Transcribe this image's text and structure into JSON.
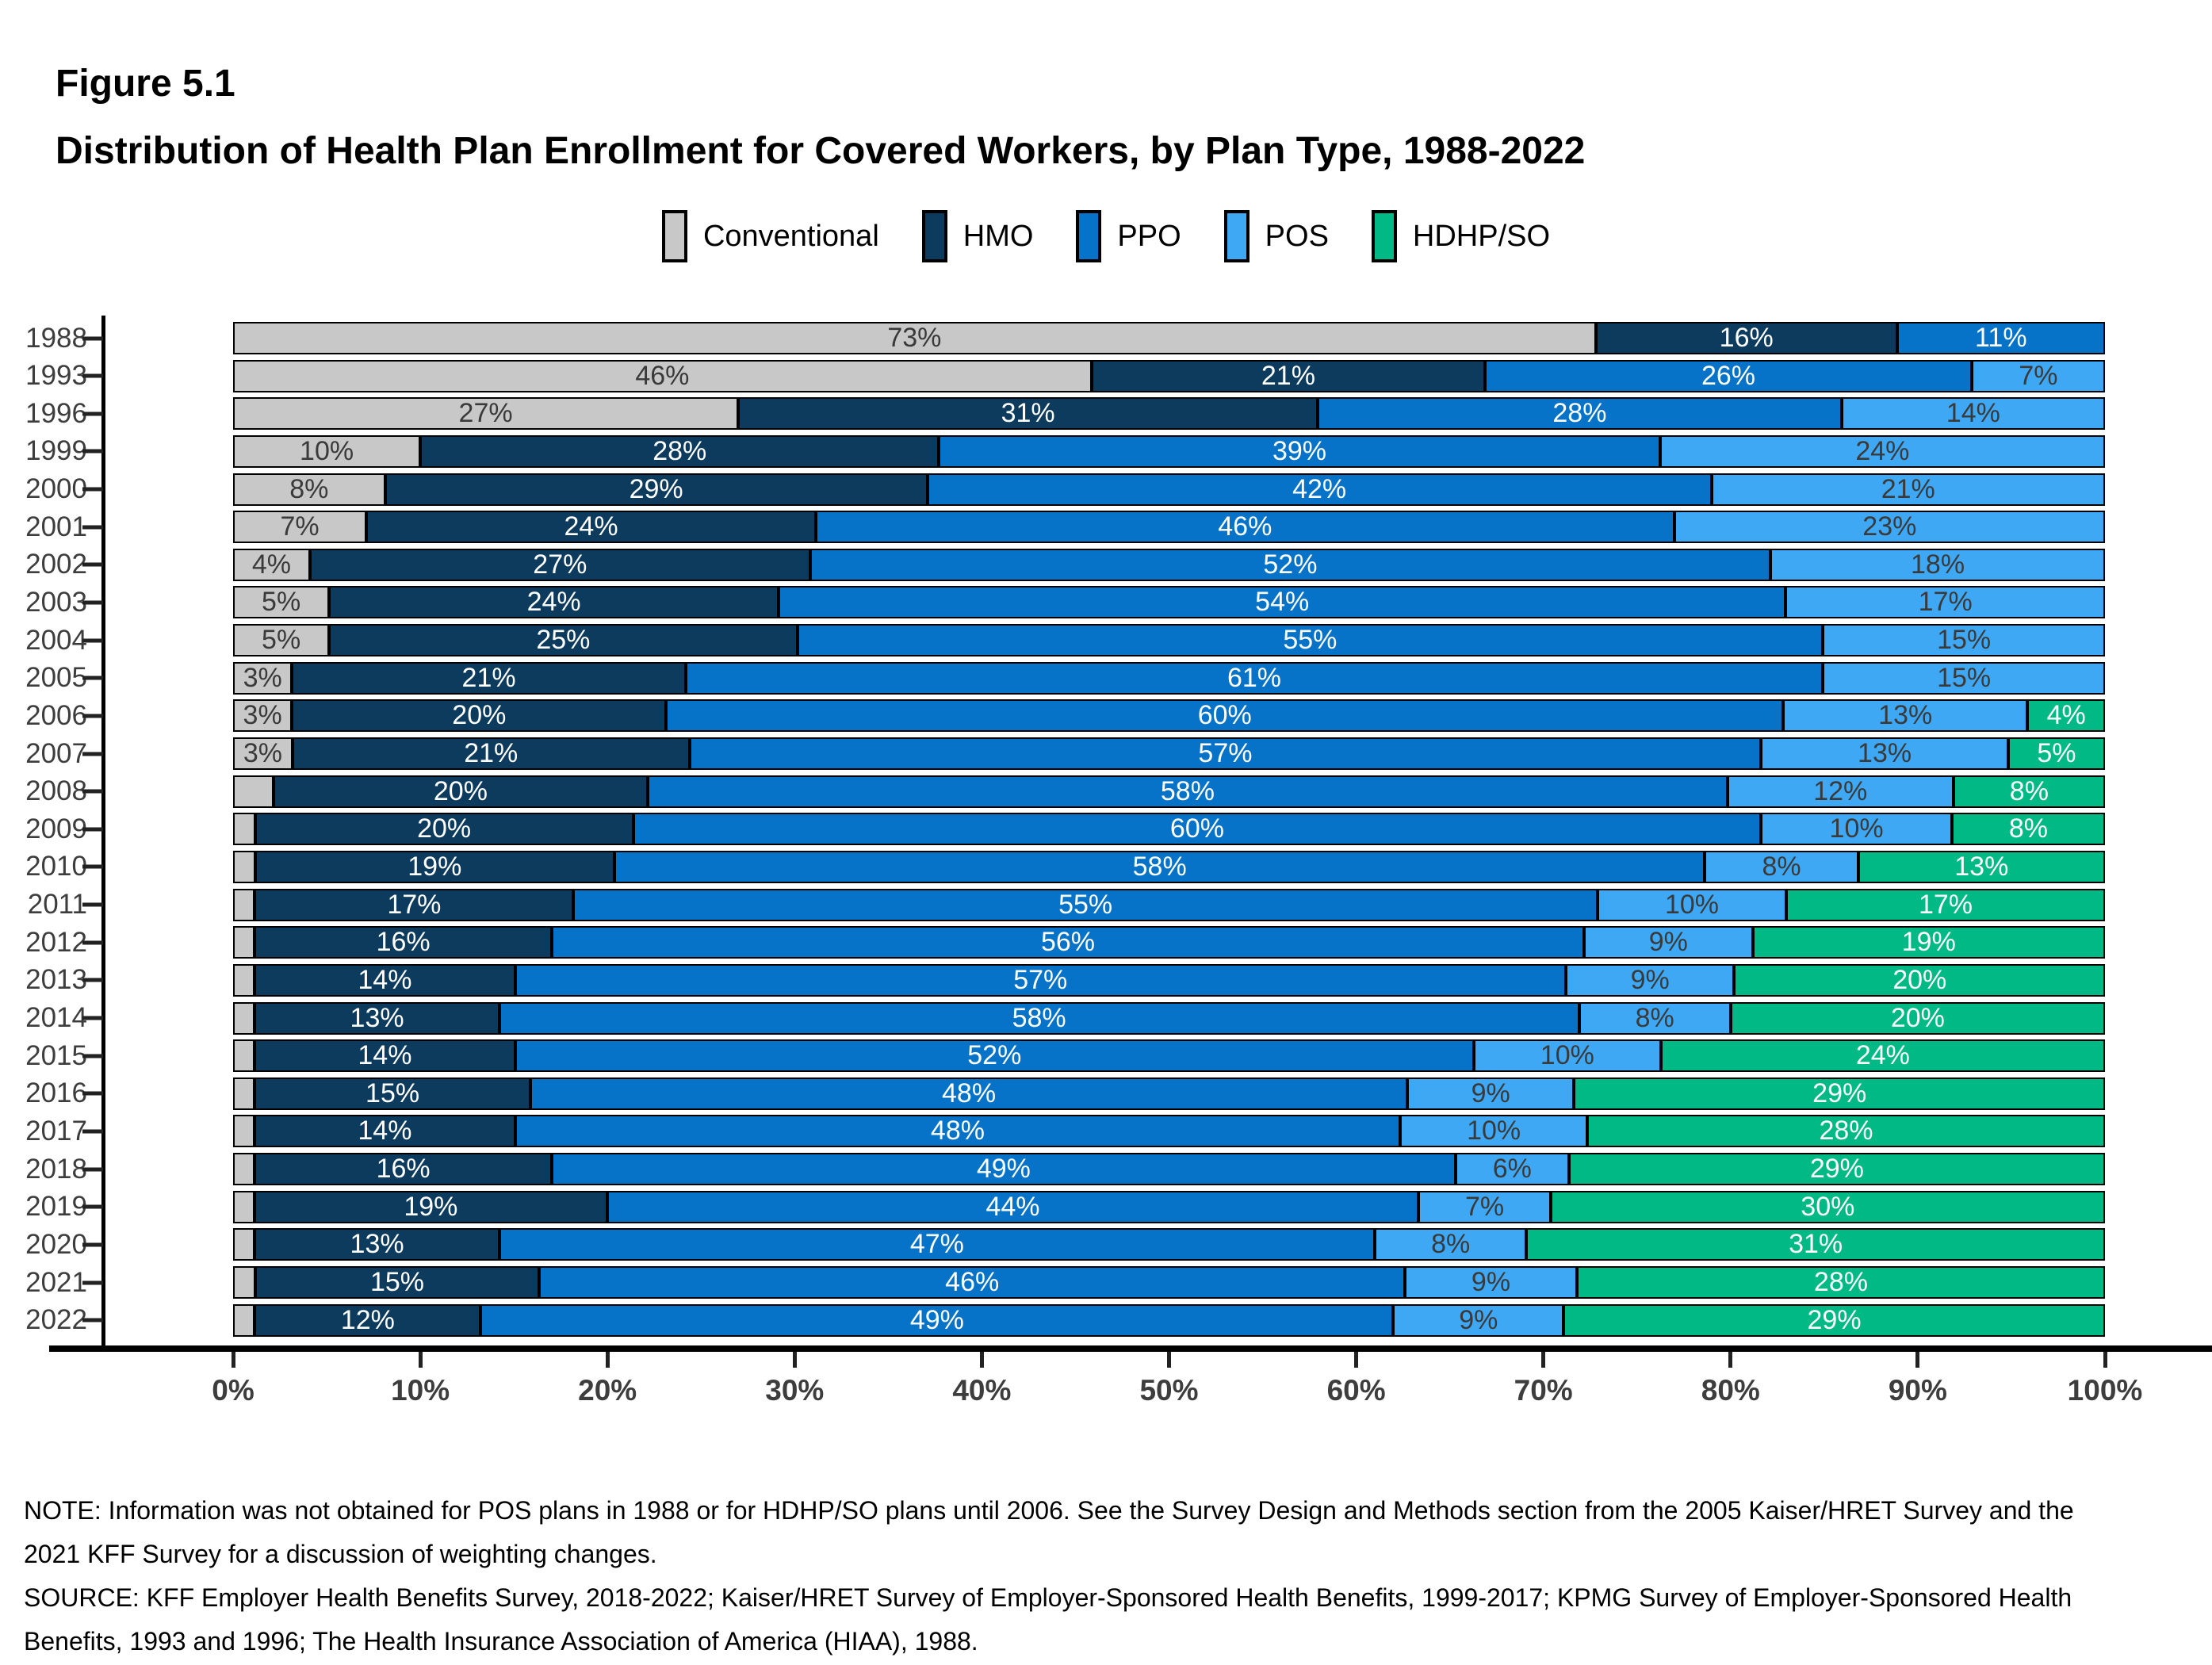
{
  "figure": {
    "label": "Figure 5.1",
    "title": "Distribution of Health Plan Enrollment for Covered Workers, by Plan Type, 1988-2022"
  },
  "notes": {
    "note": "NOTE: Information was not obtained for POS plans in 1988 or for HDHP/SO plans until 2006. See the Survey Design and Methods section from the 2005 Kaiser/HRET Survey and the 2021 KFF Survey for a discussion of weighting changes.",
    "source": "SOURCE: KFF Employer Health Benefits Survey, 2018-2022; Kaiser/HRET Survey of Employer-Sponsored Health Benefits, 1999-2017; KPMG Survey of Employer-Sponsored Health Benefits, 1993 and 1996; The Health Insurance Association of America (HIAA), 1988."
  },
  "chart_data": {
    "type": "bar",
    "stacked": true,
    "horizontal": true,
    "grid": false,
    "legend_position": "top-center",
    "axis_color": "#3d3d3d",
    "x_axis": {
      "min": 0,
      "max": 100,
      "ticks": [
        "0%",
        "10%",
        "20%",
        "30%",
        "40%",
        "50%",
        "60%",
        "70%",
        "80%",
        "90%",
        "100%"
      ]
    },
    "categories": [
      "1988",
      "1993",
      "1996",
      "1999",
      "2000",
      "2001",
      "2002",
      "2003",
      "2004",
      "2005",
      "2006",
      "2007",
      "2008",
      "2009",
      "2010",
      "2011",
      "2012",
      "2013",
      "2014",
      "2015",
      "2016",
      "2017",
      "2018",
      "2019",
      "2020",
      "2021",
      "2022"
    ],
    "series": [
      {
        "name": "Conventional",
        "color": "#c8c8c8",
        "label_color": "#3a3a3a",
        "values": [
          73,
          46,
          27,
          10,
          8,
          7,
          4,
          5,
          5,
          3,
          3,
          3,
          2,
          1,
          1,
          1,
          1,
          1,
          1,
          1,
          1,
          1,
          1,
          1,
          1,
          1,
          1
        ],
        "labels": [
          "73%",
          "46%",
          "27%",
          "10%",
          "8%",
          "7%",
          "4%",
          "5%",
          "5%",
          "3%",
          "3%",
          "3%",
          "",
          "",
          "",
          "",
          "",
          "",
          "",
          "",
          "",
          "",
          "",
          "",
          "",
          "",
          ""
        ]
      },
      {
        "name": "HMO",
        "color": "#0c3b5d",
        "label_color": "#ffffff",
        "values": [
          16,
          21,
          31,
          28,
          29,
          24,
          27,
          24,
          25,
          21,
          20,
          21,
          20,
          20,
          19,
          17,
          16,
          14,
          13,
          14,
          15,
          14,
          16,
          19,
          13,
          15,
          12
        ],
        "labels": [
          "16%",
          "21%",
          "31%",
          "28%",
          "29%",
          "24%",
          "27%",
          "24%",
          "25%",
          "21%",
          "20%",
          "21%",
          "20%",
          "20%",
          "19%",
          "17%",
          "16%",
          "14%",
          "13%",
          "14%",
          "15%",
          "14%",
          "16%",
          "19%",
          "13%",
          "15%",
          "12%"
        ]
      },
      {
        "name": "PPO",
        "color": "#0673c8",
        "label_color": "#ffffff",
        "values": [
          11,
          26,
          28,
          39,
          42,
          46,
          52,
          54,
          55,
          61,
          60,
          57,
          58,
          60,
          58,
          55,
          56,
          57,
          58,
          52,
          48,
          48,
          49,
          44,
          47,
          46,
          49
        ],
        "labels": [
          "11%",
          "26%",
          "28%",
          "39%",
          "42%",
          "46%",
          "52%",
          "54%",
          "55%",
          "61%",
          "60%",
          "57%",
          "58%",
          "60%",
          "58%",
          "55%",
          "56%",
          "57%",
          "58%",
          "52%",
          "48%",
          "48%",
          "49%",
          "44%",
          "47%",
          "46%",
          "49%"
        ]
      },
      {
        "name": "POS",
        "color": "#3fa8f5",
        "label_color": "#3a3a3a",
        "values": [
          0,
          7,
          14,
          24,
          21,
          23,
          18,
          17,
          15,
          15,
          13,
          13,
          12,
          10,
          8,
          10,
          9,
          9,
          8,
          10,
          9,
          10,
          6,
          7,
          8,
          9,
          9
        ],
        "labels": [
          "",
          "7%",
          "14%",
          "24%",
          "21%",
          "23%",
          "18%",
          "17%",
          "15%",
          "15%",
          "13%",
          "13%",
          "12%",
          "10%",
          "8%",
          "10%",
          "9%",
          "9%",
          "8%",
          "10%",
          "9%",
          "10%",
          "6%",
          "7%",
          "8%",
          "9%",
          "9%"
        ]
      },
      {
        "name": "HDHP/SO",
        "color": "#00b985",
        "label_color": "#ffffff",
        "values": [
          0,
          0,
          0,
          0,
          0,
          0,
          0,
          0,
          0,
          0,
          4,
          5,
          8,
          8,
          13,
          17,
          19,
          20,
          20,
          24,
          29,
          28,
          29,
          30,
          31,
          28,
          29
        ],
        "labels": [
          "",
          "",
          "",
          "",
          "",
          "",
          "",
          "",
          "",
          "",
          "4%",
          "5%",
          "8%",
          "8%",
          "13%",
          "17%",
          "19%",
          "20%",
          "20%",
          "24%",
          "29%",
          "28%",
          "29%",
          "30%",
          "31%",
          "28%",
          "29%"
        ]
      }
    ]
  }
}
